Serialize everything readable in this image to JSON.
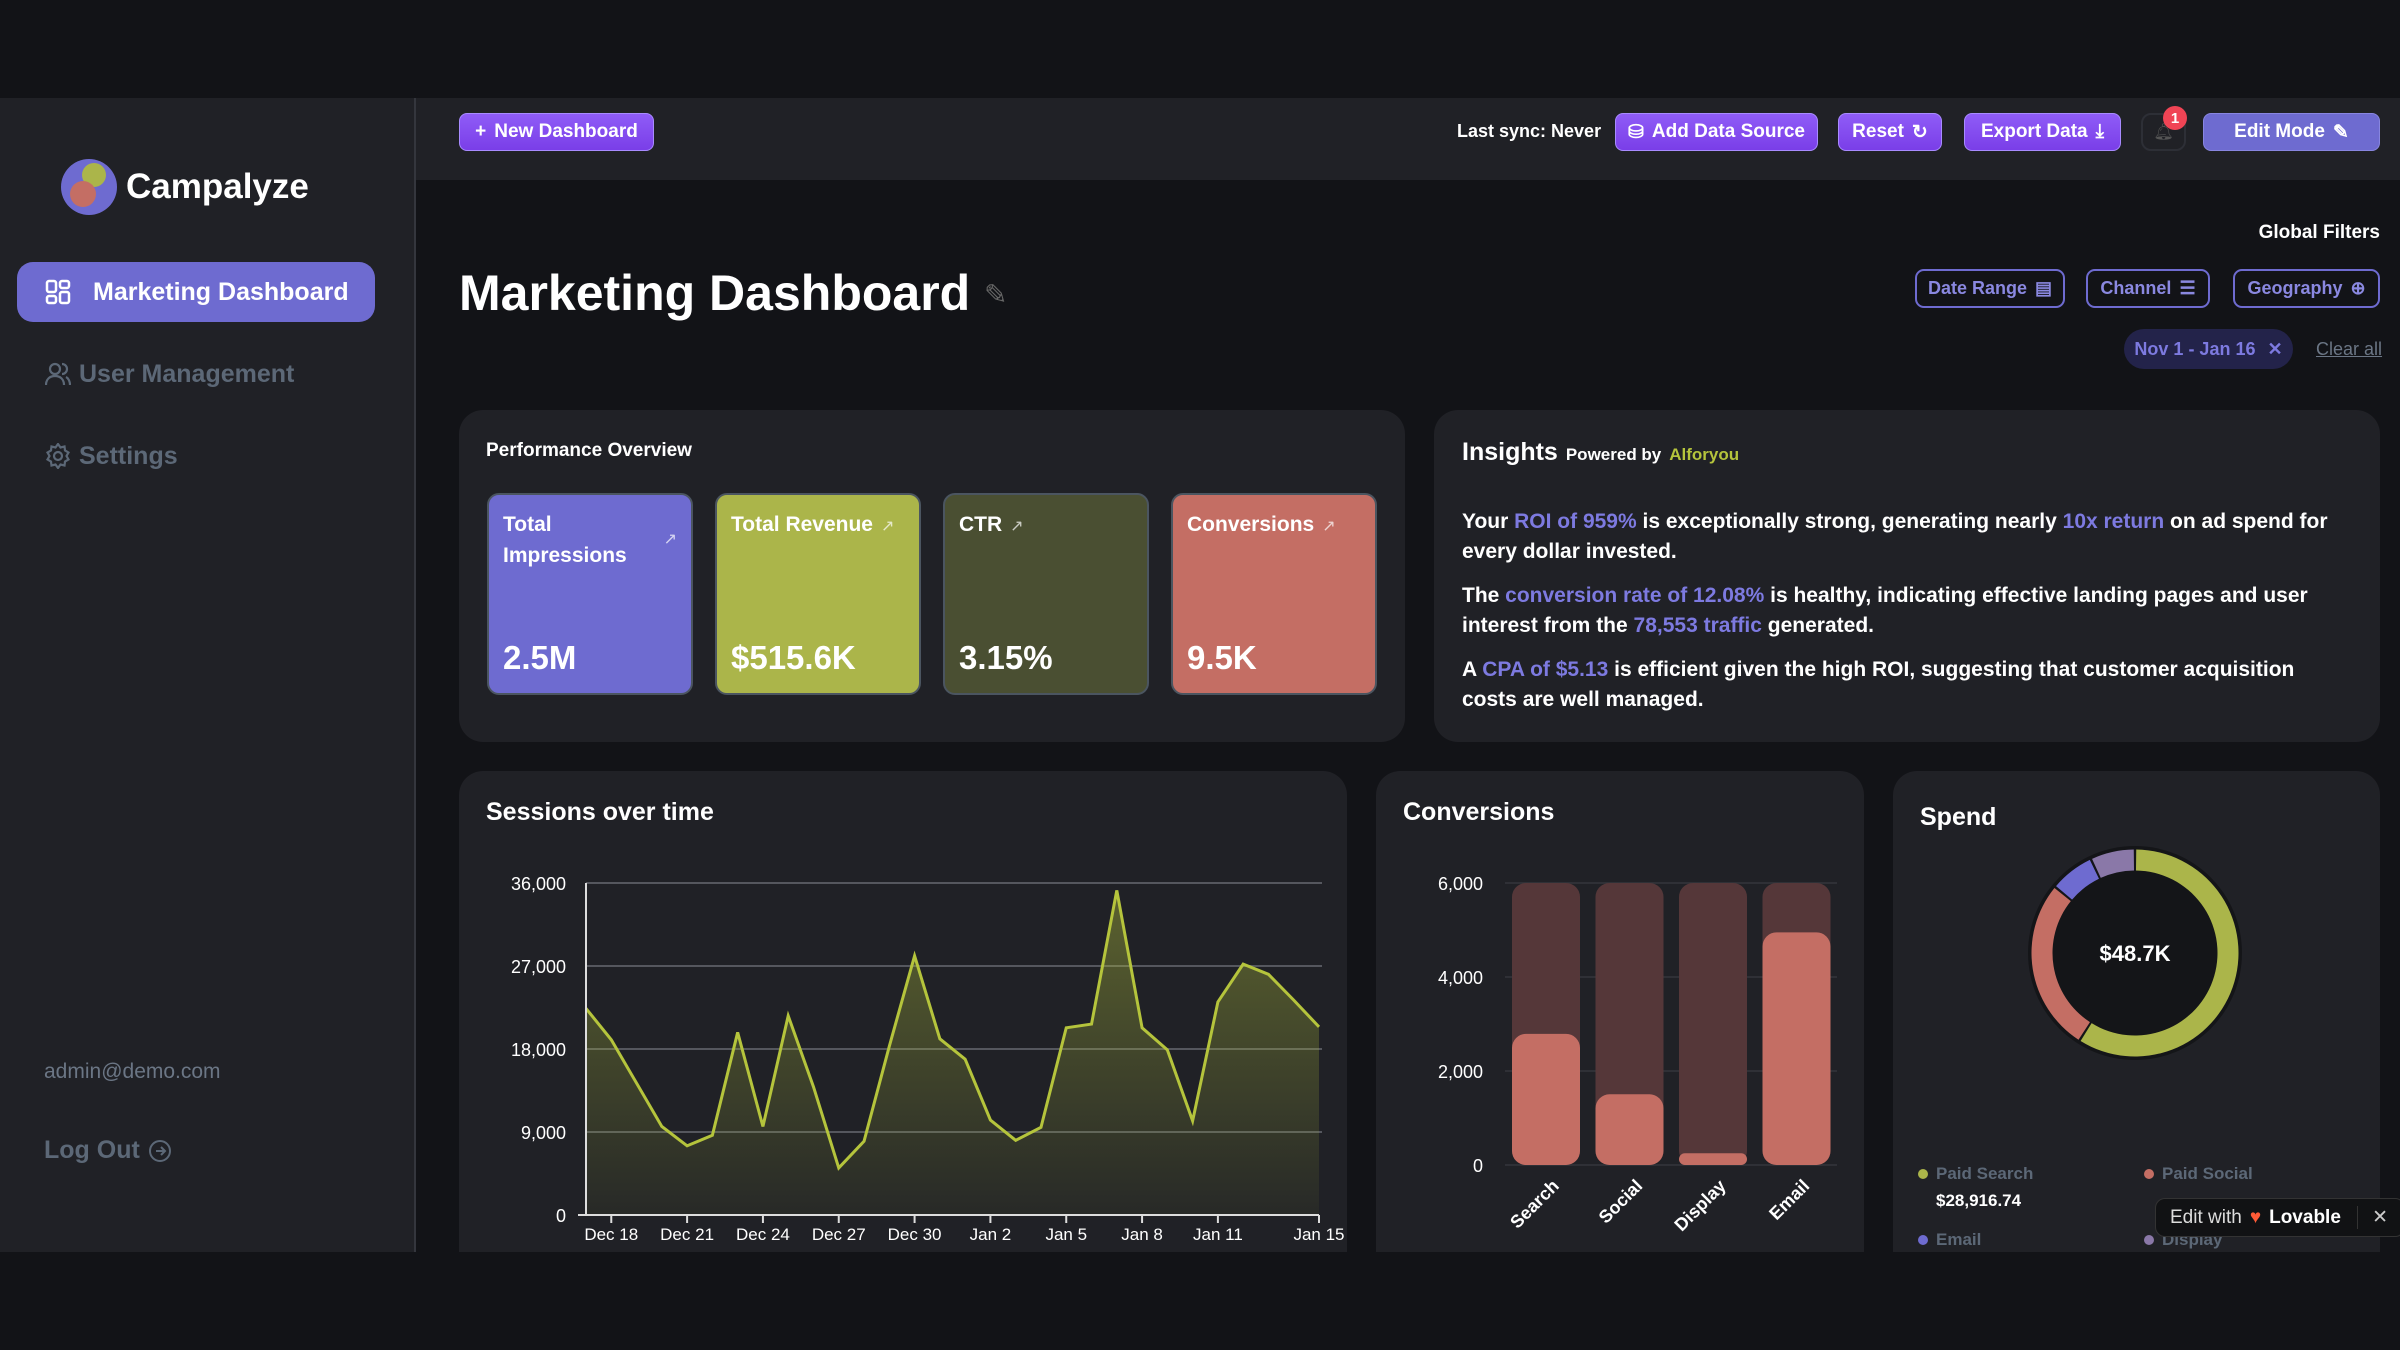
{
  "app": {
    "name": "Campalyze"
  },
  "sidebar": {
    "items": [
      {
        "label": "Marketing Dashboard",
        "icon": "grid-icon",
        "active": true
      },
      {
        "label": "User Management",
        "icon": "users-icon"
      },
      {
        "label": "Settings",
        "icon": "gear-icon"
      }
    ],
    "user_email": "admin@demo.com",
    "logout_label": "Log Out"
  },
  "header": {
    "new_dashboard": "New Dashboard",
    "last_sync": "Last sync: Never",
    "add_data_source": "Add Data Source",
    "reset": "Reset",
    "export": "Export Data",
    "notification_count": "1",
    "edit_mode": "Edit Mode"
  },
  "page": {
    "title": "Marketing Dashboard",
    "global_filters": "Global Filters",
    "filters": [
      "Date Range",
      "Channel",
      "Geography"
    ],
    "active_chip": "Nov 1 - Jan 16",
    "clear_all": "Clear all"
  },
  "performance": {
    "title": "Performance Overview",
    "kpis": [
      {
        "label": "Total Impressions",
        "value": "2.5M",
        "color": "#6e6bd0"
      },
      {
        "label": "Total Revenue",
        "value": "$515.6K",
        "color": "#abb54a"
      },
      {
        "label": "CTR",
        "value": "3.15%",
        "color": "#4a4f32"
      },
      {
        "label": "Conversions",
        "value": "9.5K",
        "color": "#c46e64"
      }
    ]
  },
  "insights": {
    "title": "Insights",
    "powered_by": "Powered by",
    "provider": "Alforyou",
    "paragraphs": [
      [
        {
          "t": "Your "
        },
        {
          "t": "ROI of 959%",
          "hl": true
        },
        {
          "t": " is exceptionally strong, generating nearly "
        },
        {
          "t": "10x return",
          "hl": true
        },
        {
          "t": " on ad spend for every dollar invested."
        }
      ],
      [
        {
          "t": "The "
        },
        {
          "t": "conversion rate of 12.08%",
          "hl": true
        },
        {
          "t": " is healthy, indicating effective landing pages and user interest from the "
        },
        {
          "t": "78,553 traffic",
          "hl": true
        },
        {
          "t": " generated."
        }
      ],
      [
        {
          "t": "A "
        },
        {
          "t": "CPA of $5.13",
          "hl": true
        },
        {
          "t": " is efficient given the high ROI, suggesting that customer acquisition costs are well managed."
        }
      ]
    ]
  },
  "chart_data": [
    {
      "type": "area",
      "title": "Sessions over time",
      "ylim": [
        0,
        36000
      ],
      "yticks": [
        "0",
        "9,000",
        "18,000",
        "27,000",
        "36,000"
      ],
      "grid": true,
      "x": [
        "Dec 17",
        "Dec 18",
        "Dec 19",
        "Dec 20",
        "Dec 21",
        "Dec 22",
        "Dec 23",
        "Dec 24",
        "Dec 25",
        "Dec 26",
        "Dec 27",
        "Dec 28",
        "Dec 29",
        "Dec 30",
        "Dec 31",
        "Jan 1",
        "Jan 2",
        "Jan 3",
        "Jan 4",
        "Jan 5",
        "Jan 6",
        "Jan 7",
        "Jan 8",
        "Jan 9",
        "Jan 10",
        "Jan 11",
        "Jan 12",
        "Jan 13",
        "Jan 14",
        "Jan 15"
      ],
      "xticks": [
        "Dec 18",
        "Dec 21",
        "Dec 24",
        "Dec 27",
        "Dec 30",
        "Jan 2",
        "Jan 5",
        "Jan 8",
        "Jan 11",
        "Jan 15"
      ],
      "values": [
        22400,
        19000,
        14300,
        9600,
        7500,
        8650,
        19800,
        9600,
        21600,
        13900,
        5100,
        8000,
        18300,
        28100,
        19100,
        16900,
        10300,
        8100,
        9500,
        20300,
        20700,
        35200,
        20300,
        17900,
        10200,
        23100,
        27200,
        26100,
        23300,
        20400
      ],
      "color": "#b5c43c"
    },
    {
      "type": "bar",
      "title": "Conversions",
      "categories": [
        "Search",
        "Social",
        "Display",
        "Email"
      ],
      "values": [
        2790,
        1505,
        250,
        4950
      ],
      "background_max": 6000,
      "ylim": [
        0,
        6000
      ],
      "yticks": [
        "0",
        "2,000",
        "4,000",
        "6,000"
      ],
      "color": "#c46e64",
      "track_color": "#553739"
    },
    {
      "type": "pie",
      "title": "Spend",
      "center_label": "$48.7K",
      "slices": [
        {
          "name": "Paid Search",
          "value": 28916.74,
          "display": "$28,916.74",
          "color": "#abb54a"
        },
        {
          "name": "Paid Social",
          "share": 0.27,
          "color": "#c46e64"
        },
        {
          "name": "Email",
          "share": 0.07,
          "color": "#6e6bd0"
        },
        {
          "name": "Display",
          "share": 0.07,
          "color": "#8a78a8"
        }
      ]
    }
  ],
  "lovable": {
    "prefix": "Edit with",
    "brand": "Lovable"
  }
}
